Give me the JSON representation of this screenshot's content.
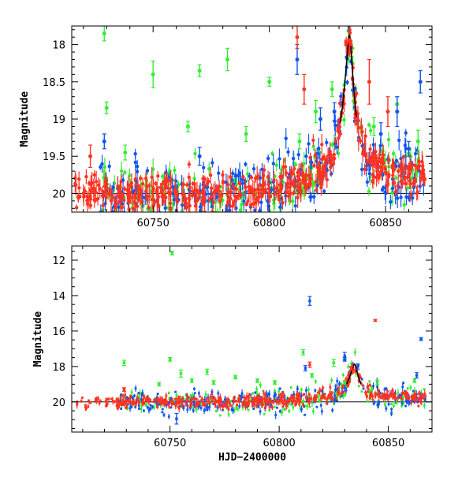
{
  "chart_data": [
    {
      "type": "scatter",
      "panel": "top",
      "ylabel": "Magnitude",
      "xlabel": "",
      "xlim": [
        60715,
        60870
      ],
      "ylim": [
        20.25,
        17.75
      ],
      "y_inverted": true,
      "x_ticks": [
        60750,
        60800,
        60850
      ],
      "x_tick_labels": [
        "60750",
        "60800",
        "60850"
      ],
      "y_ticks": [
        18,
        18.5,
        19,
        19.5,
        20
      ],
      "y_tick_labels": [
        "18",
        "18.5",
        "19",
        "19.5",
        "20"
      ],
      "baseline_mag": 20.0,
      "peak": {
        "x": 60834.5,
        "y": 18.0
      },
      "error_bars": true,
      "series_colors": {
        "green": "#33ee33",
        "blue": "#1155ee",
        "red": "#ff3322",
        "black": "#000000"
      },
      "series": [
        {
          "color_key": "green",
          "outliers": [
            [
              60729,
              17.85,
              0.1
            ],
            [
              60750,
              18.4,
              0.18
            ],
            [
              60765,
              19.1,
              0.07
            ],
            [
              60770,
              18.35,
              0.08
            ],
            [
              60782,
              18.2,
              0.15
            ],
            [
              60730,
              18.85,
              0.08
            ],
            [
              60800,
              18.5,
              0.06
            ],
            [
              60813,
              19.3,
              0.1
            ],
            [
              60820,
              18.9,
              0.15
            ],
            [
              60827,
              18.6,
              0.1
            ],
            [
              60845,
              19.1,
              0.12
            ],
            [
              60855,
              18.8,
              0.1
            ],
            [
              60864,
              19.3,
              0.15
            ],
            [
              60790,
              19.2,
              0.1
            ],
            [
              60738,
              19.45,
              0.1
            ]
          ]
        },
        {
          "color_key": "blue",
          "outliers": [
            [
              60729,
              19.3,
              0.1
            ],
            [
              60812,
              18.2,
              0.2
            ],
            [
              60822,
              19.0,
              0.15
            ],
            [
              60828,
              18.9,
              0.12
            ],
            [
              60848,
              19.2,
              0.15
            ],
            [
              60855,
              18.9,
              0.2
            ],
            [
              60865,
              18.5,
              0.15
            ],
            [
              60860,
              19.4,
              0.1
            ],
            [
              60770,
              19.5,
              0.12
            ]
          ]
        },
        {
          "color_key": "red",
          "outliers": [
            [
              60723,
              19.5,
              0.15
            ],
            [
              60812,
              17.9,
              0.15
            ],
            [
              60815,
              18.6,
              0.2
            ],
            [
              60843,
              18.5,
              0.3
            ],
            [
              60851,
              18.9,
              0.2
            ],
            [
              60833,
              17.97,
              0.03
            ],
            [
              60834.5,
              17.95,
              0.03
            ],
            [
              60835,
              17.98,
              0.03
            ]
          ]
        }
      ]
    },
    {
      "type": "scatter",
      "panel": "bottom",
      "ylabel": "Magnitude",
      "xlabel": "HJD−2400000",
      "xlim": [
        60705,
        60870
      ],
      "ylim": [
        21.7,
        11.2
      ],
      "y_inverted": true,
      "x_ticks": [
        60750,
        60800,
        60850
      ],
      "x_tick_labels": [
        "60750",
        "60800",
        "60850"
      ],
      "y_ticks": [
        12,
        14,
        16,
        18,
        20
      ],
      "y_tick_labels": [
        "12",
        "14",
        "16",
        "18",
        "20"
      ],
      "baseline_mag": 20.0,
      "peak": {
        "x": 60834.5,
        "y": 18.0
      },
      "error_bars": true,
      "series_colors": {
        "green": "#33ee33",
        "blue": "#1155ee",
        "red": "#ff3322",
        "black": "#000000"
      },
      "series": [
        {
          "color_key": "green",
          "outliers": [
            [
              60751,
              11.6,
              0.1
            ],
            [
              60750,
              17.6,
              0.1
            ],
            [
              60755,
              18.4,
              0.2
            ],
            [
              60729,
              17.8,
              0.15
            ],
            [
              60767,
              18.3,
              0.15
            ],
            [
              60760,
              18.8,
              0.1
            ],
            [
              60745,
              19.0,
              0.1
            ],
            [
              60790,
              18.8,
              0.1
            ],
            [
              60811,
              17.2,
              0.15
            ],
            [
              60825,
              17.8,
              0.2
            ],
            [
              60830,
              18.9,
              0.1
            ],
            [
              60845,
              18.9,
              0.12
            ],
            [
              60862,
              18.8,
              0.1
            ],
            [
              60798,
              18.9,
              0.1
            ],
            [
              60770,
              18.9,
              0.1
            ],
            [
              60815,
              18.5,
              0.1
            ],
            [
              60780,
              18.6,
              0.1
            ]
          ]
        },
        {
          "color_key": "blue",
          "outliers": [
            [
              60814,
              14.3,
              0.25
            ],
            [
              60865,
              16.45,
              0.08
            ],
            [
              60830,
              17.4,
              0.2
            ],
            [
              60836,
              18.0,
              0.15
            ],
            [
              60812,
              18.1,
              0.15
            ],
            [
              60863,
              18.5,
              0.15
            ],
            [
              60753,
              20.95,
              0.3
            ],
            [
              60830,
              17.6,
              0.1
            ]
          ]
        },
        {
          "color_key": "red",
          "outliers": [
            [
              60844,
              15.4,
              0.05
            ],
            [
              60814,
              17.9,
              0.15
            ],
            [
              60833,
              18.1,
              0.1
            ],
            [
              60729,
              19.3,
              0.1
            ]
          ]
        }
      ]
    }
  ]
}
